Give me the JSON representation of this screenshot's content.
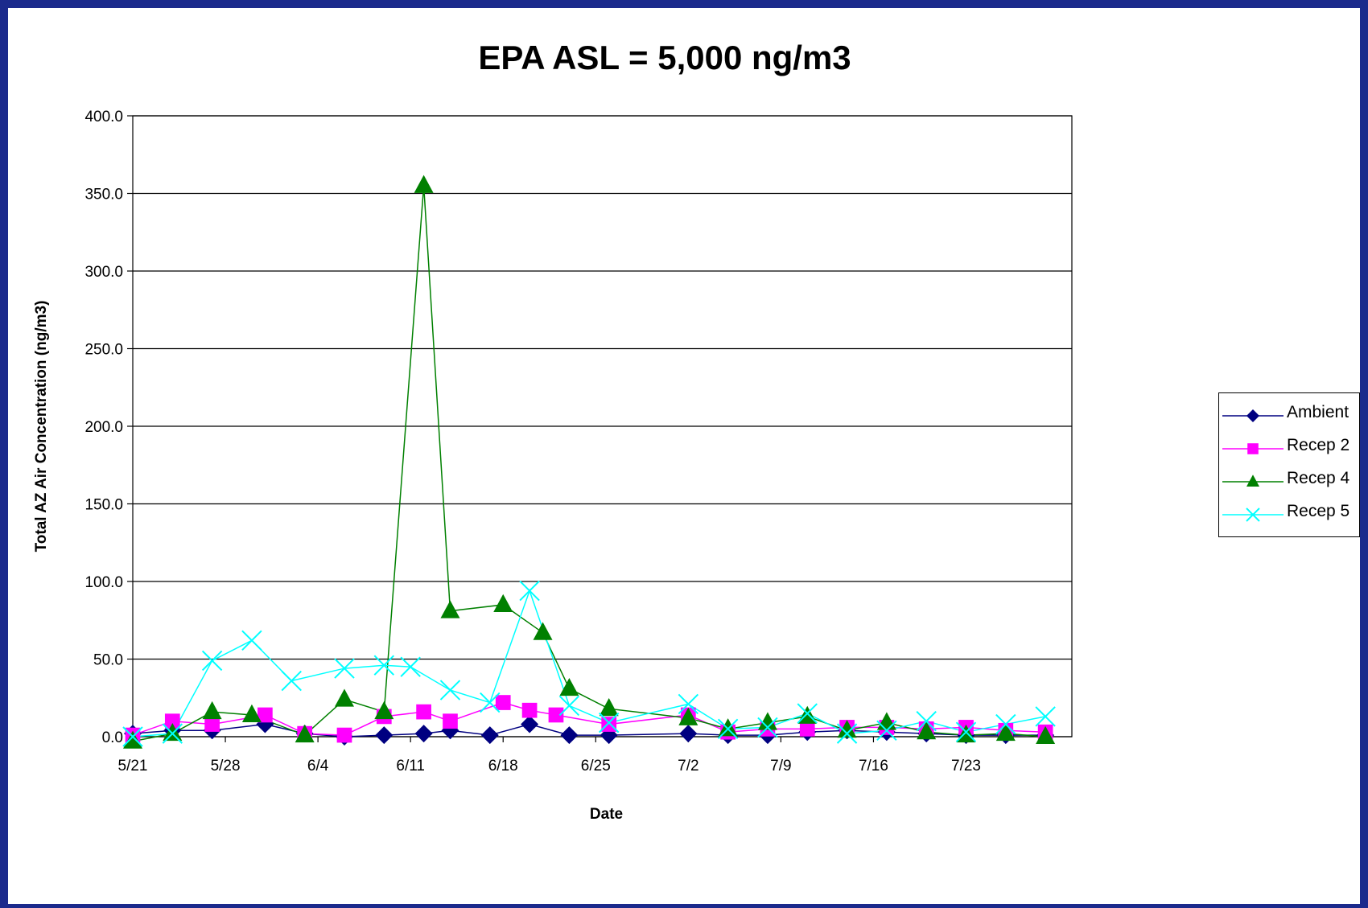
{
  "chart_data": {
    "type": "line",
    "title": "EPA ASL = 5,000 ng/m3",
    "xlabel": "Date",
    "ylabel": "Total AZ Air Concentration (ng/m3)",
    "ylim": [
      0,
      400
    ],
    "yticks": [
      "0.0",
      "50.0",
      "100.0",
      "150.0",
      "200.0",
      "250.0",
      "300.0",
      "350.0",
      "400.0"
    ],
    "xlim": [
      "5/21",
      "7/31"
    ],
    "xticks": [
      "5/21",
      "5/28",
      "6/4",
      "6/11",
      "6/18",
      "6/25",
      "7/2",
      "7/9",
      "7/16",
      "7/23"
    ],
    "grid": "horizontal",
    "legend_position": "right",
    "series": [
      {
        "name": "Ambient",
        "color": "#000080",
        "marker": "diamond",
        "points": [
          [
            "5/21",
            2
          ],
          [
            "5/24",
            4
          ],
          [
            "5/27",
            4
          ],
          [
            "5/31",
            8
          ],
          [
            "6/3",
            2
          ],
          [
            "6/6",
            0
          ],
          [
            "6/9",
            1
          ],
          [
            "6/12",
            2
          ],
          [
            "6/14",
            4
          ],
          [
            "6/17",
            1
          ],
          [
            "6/20",
            8
          ],
          [
            "6/23",
            1
          ],
          [
            "6/26",
            1
          ],
          [
            "7/2",
            2
          ],
          [
            "7/5",
            1
          ],
          [
            "7/8",
            1
          ],
          [
            "7/11",
            3
          ],
          [
            "7/14",
            4
          ],
          [
            "7/17",
            3
          ],
          [
            "7/20",
            2
          ],
          [
            "7/23",
            1
          ],
          [
            "7/26",
            1
          ],
          [
            "7/29",
            1
          ]
        ]
      },
      {
        "name": "Recep 2",
        "color": "#ff00ff",
        "marker": "square",
        "points": [
          [
            "5/21",
            1
          ],
          [
            "5/24",
            10
          ],
          [
            "5/27",
            8
          ],
          [
            "5/31",
            14
          ],
          [
            "6/3",
            2
          ],
          [
            "6/6",
            1
          ],
          [
            "6/9",
            13
          ],
          [
            "6/12",
            16
          ],
          [
            "6/14",
            10
          ],
          [
            "6/18",
            22
          ],
          [
            "6/20",
            17
          ],
          [
            "6/22",
            14
          ],
          [
            "6/26",
            8
          ],
          [
            "7/2",
            14
          ],
          [
            "7/5",
            3
          ],
          [
            "7/8",
            5
          ],
          [
            "7/11",
            5
          ],
          [
            "7/14",
            6
          ],
          [
            "7/17",
            6
          ],
          [
            "7/20",
            5
          ],
          [
            "7/23",
            6
          ],
          [
            "7/26",
            4
          ],
          [
            "7/29",
            3
          ]
        ]
      },
      {
        "name": "Recep 4",
        "color": "#008000",
        "marker": "triangle",
        "points": [
          [
            "5/21",
            -3
          ],
          [
            "5/24",
            2
          ],
          [
            "5/27",
            16
          ],
          [
            "5/30",
            14
          ],
          [
            "6/3",
            1
          ],
          [
            "6/6",
            24
          ],
          [
            "6/9",
            16
          ],
          [
            "6/12",
            355
          ],
          [
            "6/14",
            81
          ],
          [
            "6/18",
            85
          ],
          [
            "6/21",
            67
          ],
          [
            "6/23",
            31
          ],
          [
            "6/26",
            18
          ],
          [
            "7/2",
            12
          ],
          [
            "7/5",
            5
          ],
          [
            "7/8",
            9
          ],
          [
            "7/11",
            13
          ],
          [
            "7/14",
            4
          ],
          [
            "7/17",
            9
          ],
          [
            "7/20",
            3
          ],
          [
            "7/23",
            1
          ],
          [
            "7/26",
            2
          ],
          [
            "7/29",
            0
          ]
        ]
      },
      {
        "name": "Recep 5",
        "color": "#00ffff",
        "marker": "x",
        "points": [
          [
            "5/21",
            0
          ],
          [
            "5/24",
            2
          ],
          [
            "5/27",
            49
          ],
          [
            "5/30",
            62
          ],
          [
            "6/2",
            36
          ],
          [
            "6/6",
            44
          ],
          [
            "6/9",
            46
          ],
          [
            "6/11",
            45
          ],
          [
            "6/14",
            30
          ],
          [
            "6/17",
            22
          ],
          [
            "6/20",
            94
          ],
          [
            "6/23",
            20
          ],
          [
            "6/26",
            9
          ],
          [
            "7/2",
            21
          ],
          [
            "7/5",
            5
          ],
          [
            "7/8",
            6
          ],
          [
            "7/11",
            15
          ],
          [
            "7/14",
            2
          ],
          [
            "7/17",
            4
          ],
          [
            "7/20",
            10
          ],
          [
            "7/23",
            3
          ],
          [
            "7/26",
            8
          ],
          [
            "7/29",
            13
          ]
        ]
      }
    ]
  }
}
